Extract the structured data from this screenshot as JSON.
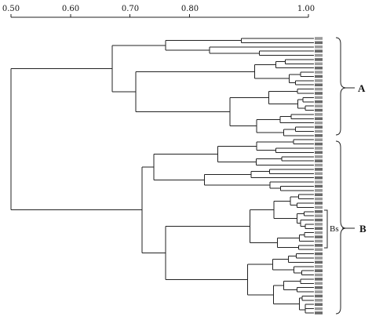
{
  "scale": {
    "ticks": [
      {
        "value": 0.5,
        "label": "0.50"
      },
      {
        "value": 0.6,
        "label": "0.60"
      },
      {
        "value": 0.7,
        "label": "0.70"
      },
      {
        "value": 0.8,
        "label": "0.80"
      },
      {
        "value": 1.0,
        "label": "1.00"
      }
    ],
    "min": 0.5,
    "max": 1.0
  },
  "dendrogram": {
    "root_similarity": 0.5,
    "clusters": [
      {
        "name": "A",
        "join": 0.67,
        "sub": [
          0.76,
          0.71,
          0.72
        ]
      },
      {
        "name": "B",
        "join": 0.72,
        "sub": [
          0.74,
          0.76,
          0.82
        ]
      }
    ]
  },
  "groups": {
    "A": {
      "label": "A"
    },
    "B": {
      "label": "B"
    },
    "Bs": {
      "label": "Bs"
    }
  },
  "leaf_count": 66
}
